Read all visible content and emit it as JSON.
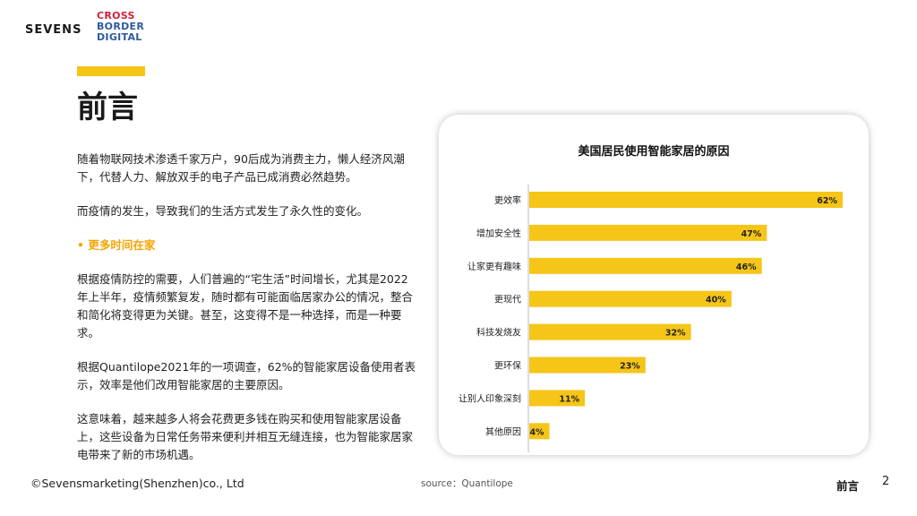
{
  "header": {
    "logo_left": "SEVENS",
    "logo_right_lines": [
      "CROSS",
      "BORDER",
      "DIGITAL"
    ]
  },
  "page_title": "前言",
  "body": {
    "p1": "随着物联网技术渗透千家万户，90后成为消费主力，懒人经济风潮下，代替人力、解放双手的电子产品已成消费必然趋势。",
    "p2": "而疫情的发生，导致我们的生活方式发生了永久性的变化。",
    "bullet_heading": "• 更多时间在家",
    "p3": "根据疫情防控的需要，人们普遍的“宅生活”时间增长，尤其是2022年上半年，疫情频繁复发，随时都有可能面临居家办公的情况，整合和简化将变得更为关键。甚至，这变得不是一种选择，而是一种要求。",
    "p4": "根据Quantilope2021年的一项调查，62%的智能家居设备使用者表示，效率是他们改用智能家居的主要原因。",
    "p5": "这意味着，越来越多人将会花费更多钱在购买和使用智能家居设备上，这些设备为日常任务带来便利并相互无缝连接，也为智能家居家电带来了新的市场机遇。"
  },
  "chart_data": {
    "type": "bar",
    "orientation": "horizontal",
    "title": "美国居民使用智能家居的原因",
    "categories": [
      "更效率",
      "增加安全性",
      "让家更有趣味",
      "更现代",
      "科技发烧友",
      "更环保",
      "让别人印象深刻",
      "其他原因"
    ],
    "values": [
      62,
      47,
      46,
      40,
      32,
      23,
      11,
      4
    ],
    "value_labels": [
      "62%",
      "47%",
      "46%",
      "40%",
      "32%",
      "23%",
      "11%",
      "4%"
    ],
    "xlim": [
      0,
      62
    ],
    "bar_color": "#f5c518",
    "grid": false,
    "legend": "none"
  },
  "footer": {
    "copyright": "©Sevensmarketing(Shenzhen)co., Ltd",
    "source": "source：Quantilope",
    "section": "前言",
    "page_number": "2"
  }
}
